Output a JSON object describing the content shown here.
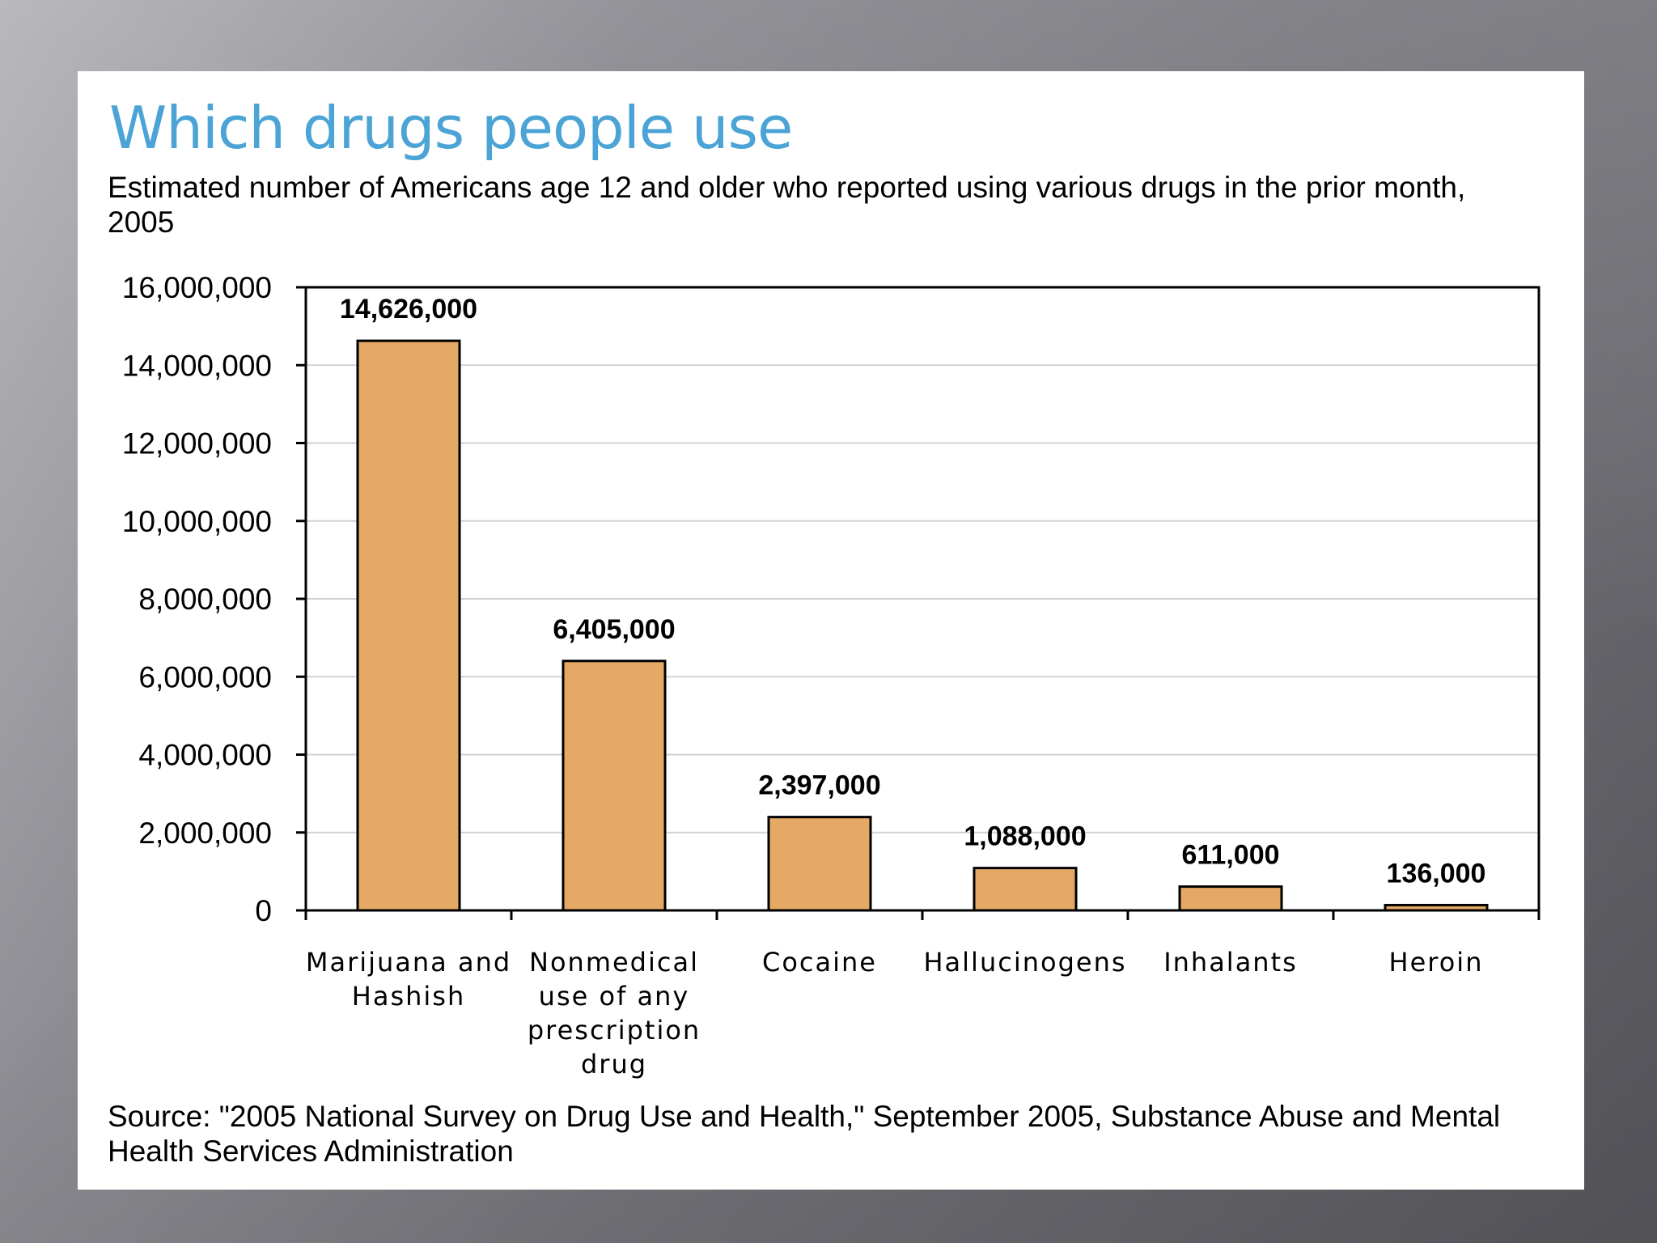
{
  "chart_data": {
    "type": "bar",
    "title": "Which drugs people use",
    "subtitle": "Estimated number of Americans age 12 and older who reported using various drugs in the prior month, 2005",
    "source": "Source: \"2005 National Survey on Drug Use and Health,\" September 2005, Substance Abuse and Mental Health Services Administration",
    "categories": [
      [
        "Marijuana and",
        "Hashish"
      ],
      [
        "Nonmedical",
        "use of any",
        "prescription",
        "drug"
      ],
      [
        "Cocaine"
      ],
      [
        "Hallucinogens"
      ],
      [
        "Inhalants"
      ],
      [
        "Heroin"
      ]
    ],
    "values": [
      14626000,
      6405000,
      2397000,
      1088000,
      611000,
      136000
    ],
    "value_labels": [
      "14,626,000",
      "6,405,000",
      "2,397,000",
      "1,088,000",
      "611,000",
      "136,000"
    ],
    "ylim": [
      0,
      16000000
    ],
    "yticks": [
      0,
      2000000,
      4000000,
      6000000,
      8000000,
      10000000,
      12000000,
      14000000,
      16000000
    ],
    "ytick_labels": [
      "0",
      "2,000,000",
      "4,000,000",
      "6,000,000",
      "8,000,000",
      "10,000,000",
      "12,000,000",
      "14,000,000",
      "16,000,000"
    ],
    "xlabel": "",
    "ylabel": "",
    "grid": true,
    "bar_color": "#e3a965"
  }
}
